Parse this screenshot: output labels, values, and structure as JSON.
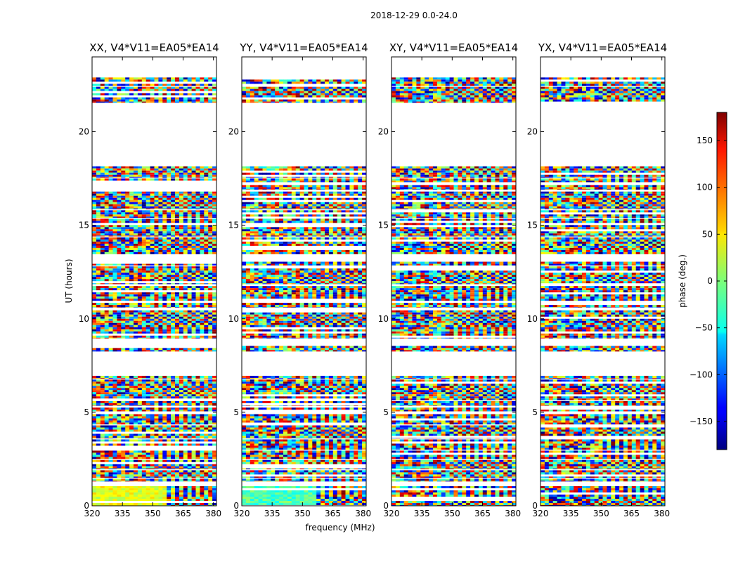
{
  "figure": {
    "suptitle": "2018-12-29 0.0-24.0",
    "xlabel": "frequency (MHz)",
    "ylabel": "UT (hours)"
  },
  "chart_data": {
    "type": "heatmap",
    "title": "2018-12-29 0.0-24.0",
    "xlabel": "frequency (MHz)",
    "ylabel": "UT (hours)",
    "xlim": [
      320,
      381.5
    ],
    "ylim": [
      0,
      24
    ],
    "xticks": [
      "320",
      "335",
      "350",
      "365",
      "380"
    ],
    "yticks": [
      "0",
      "5",
      "10",
      "15",
      "20"
    ],
    "xtick_values": [
      320,
      335,
      350,
      365,
      380
    ],
    "ytick_values": [
      0,
      5,
      10,
      15,
      20
    ],
    "panels": [
      {
        "title": "XX, V4*V11=EA05*EA14",
        "pol": "XX",
        "parallel_hand": true
      },
      {
        "title": "YY, V4*V11=EA05*EA14",
        "pol": "YY",
        "parallel_hand": true
      },
      {
        "title": "XY, V4*V11=EA05*EA14",
        "pol": "XY",
        "parallel_hand": false
      },
      {
        "title": "YX, V4*V11=EA05*EA14",
        "pol": "YX",
        "parallel_hand": false
      }
    ],
    "data_segments_hours": [
      [
        0.0,
        1.05
      ],
      [
        1.3,
        1.45
      ],
      [
        1.5,
        1.9
      ],
      [
        1.95,
        2.45
      ],
      [
        2.5,
        2.95
      ],
      [
        3.0,
        3.55
      ],
      [
        3.6,
        4.3
      ],
      [
        4.35,
        4.9
      ],
      [
        5.05,
        5.25
      ],
      [
        5.35,
        5.6
      ],
      [
        5.65,
        6.75
      ],
      [
        6.8,
        6.95
      ],
      [
        8.25,
        8.55
      ],
      [
        8.95,
        10.45
      ],
      [
        10.6,
        10.85
      ],
      [
        10.95,
        11.75
      ],
      [
        11.85,
        12.8
      ],
      [
        12.85,
        13.05
      ],
      [
        13.45,
        14.35
      ],
      [
        14.4,
        15.35
      ],
      [
        15.4,
        15.8
      ],
      [
        15.85,
        16.8
      ],
      [
        16.9,
        17.15
      ],
      [
        17.3,
        17.5
      ],
      [
        17.55,
        18.15
      ],
      [
        21.55,
        22.4
      ],
      [
        22.45,
        22.9
      ]
    ],
    "colorbar": {
      "label": "phase (deg.)",
      "range": [
        -180,
        180
      ],
      "ticks": [
        150,
        100,
        50,
        0,
        -50,
        -100,
        -150
      ],
      "tick_labels": [
        "150",
        "100",
        "50",
        "0",
        "−50",
        "−100",
        "−150"
      ],
      "colormap": "jet"
    }
  }
}
